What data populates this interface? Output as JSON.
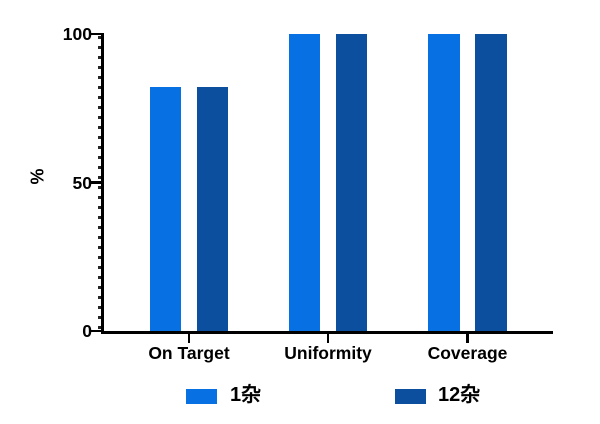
{
  "chart_data": {
    "type": "bar",
    "categories": [
      "On Target",
      "Uniformity",
      "Coverage"
    ],
    "series": [
      {
        "name": "1杂",
        "color": "#0770E2",
        "values": [
          82,
          100,
          100
        ]
      },
      {
        "name": "12杂",
        "color": "#0B4F9E",
        "values": [
          82,
          100,
          100
        ]
      }
    ],
    "title": "",
    "xlabel": "",
    "ylabel": "%",
    "ylim": [
      0,
      100
    ],
    "yticks": [
      0,
      50,
      100
    ],
    "grid": false,
    "legend_position": "bottom"
  },
  "colors": {
    "axis": "#000000",
    "text": "#000000",
    "background": "#ffffff",
    "series1": "#0770E2",
    "series2": "#0B4F9E"
  }
}
